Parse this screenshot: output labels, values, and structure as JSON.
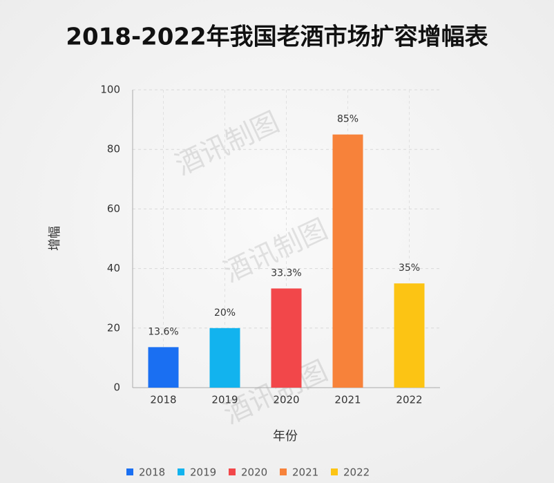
{
  "chart_data": {
    "type": "bar",
    "title": "2018-2022年我国老酒市场扩容增幅表",
    "xlabel": "年份",
    "ylabel": "增幅",
    "watermark": "酒讯制图",
    "categories": [
      "2018",
      "2019",
      "2020",
      "2021",
      "2022"
    ],
    "values": [
      13.6,
      20,
      33.3,
      85,
      35
    ],
    "value_labels": [
      "13.6%",
      "20%",
      "33.3%",
      "85%",
      "35%"
    ],
    "colors": [
      "#1a6ff2",
      "#12b3ee",
      "#f2474a",
      "#f7823a",
      "#fcc414"
    ],
    "ylim": [
      0,
      100
    ],
    "yticks": [
      0,
      20,
      40,
      60,
      80,
      100
    ],
    "grid": true,
    "legend": "bottom"
  }
}
